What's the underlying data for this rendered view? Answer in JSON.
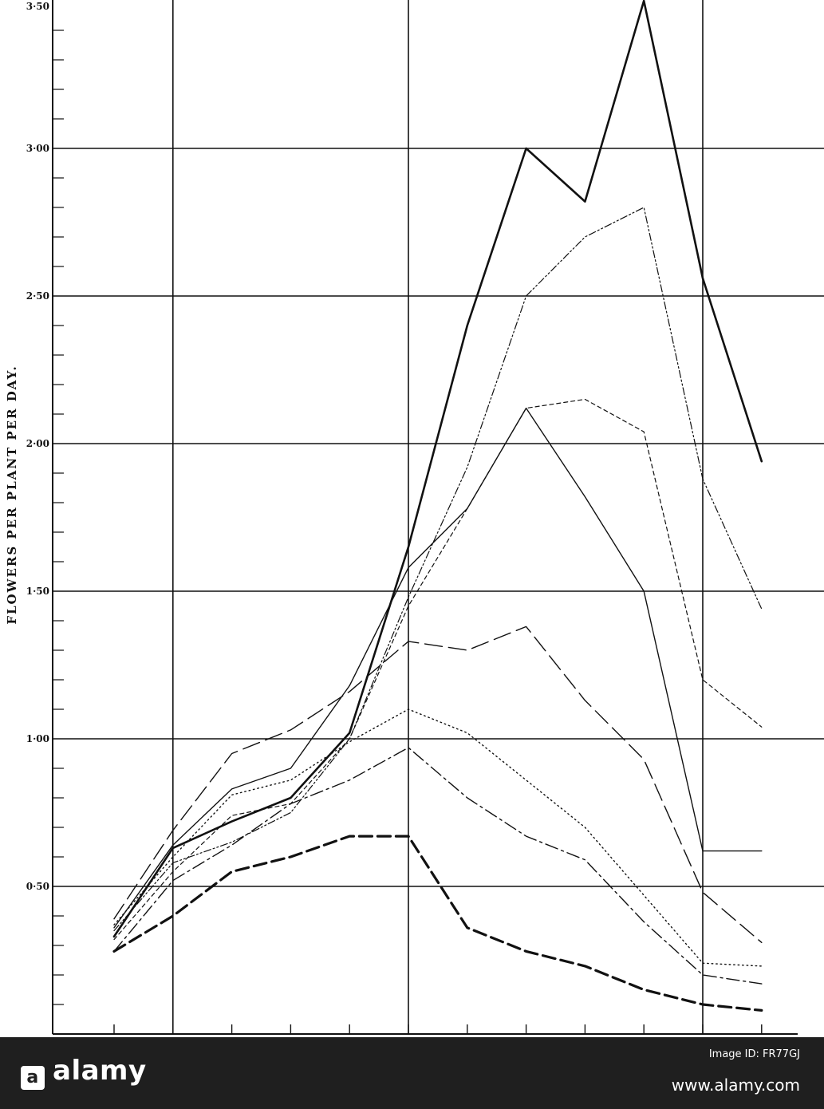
{
  "chart_data": {
    "type": "line",
    "title": "",
    "ylabel": "FLOWERS PER PLANT PER DAY.",
    "xlabel": "",
    "ylim": [
      0.0,
      3.5
    ],
    "y_tick_labels": [
      "0·50",
      "1·00",
      "1·50",
      "2·00",
      "2·50",
      "3·00",
      "3·50"
    ],
    "y_tick_values": [
      0.5,
      1.0,
      1.5,
      2.0,
      2.5,
      3.0,
      3.5
    ],
    "x_count": 12,
    "grid": true,
    "series": [
      {
        "style": "solid-heavy",
        "color": "#111111",
        "values": [
          0.33,
          0.63,
          0.72,
          0.8,
          1.02,
          1.65,
          2.4,
          3.0,
          2.82,
          3.5,
          2.56,
          1.94
        ]
      },
      {
        "style": "dash-dot-dot",
        "color": "#111111",
        "values": [
          0.35,
          0.58,
          0.65,
          0.75,
          1.0,
          1.48,
          1.92,
          2.5,
          2.7,
          2.8,
          1.88,
          1.44
        ]
      },
      {
        "style": "solid-thin",
        "color": "#111111",
        "values": [
          0.36,
          0.64,
          0.83,
          0.9,
          1.18,
          1.58,
          1.78,
          2.12,
          1.82,
          1.5,
          0.62,
          0.62
        ]
      },
      {
        "style": "short-dash",
        "color": "#111111",
        "values": [
          0.32,
          0.55,
          0.74,
          0.78,
          1.0,
          1.45,
          1.78,
          2.12,
          2.15,
          2.04,
          1.2,
          1.04
        ]
      },
      {
        "style": "long-dash",
        "color": "#111111",
        "values": [
          0.39,
          0.69,
          0.95,
          1.03,
          1.16,
          1.33,
          1.3,
          1.38,
          1.13,
          0.93,
          0.48,
          0.31
        ]
      },
      {
        "style": "dotted",
        "color": "#111111",
        "values": [
          0.37,
          0.6,
          0.81,
          0.86,
          0.99,
          1.1,
          1.02,
          0.86,
          0.7,
          0.47,
          0.24,
          0.23
        ]
      },
      {
        "style": "dash-dot",
        "color": "#111111",
        "values": [
          0.28,
          0.52,
          0.64,
          0.78,
          0.86,
          0.97,
          0.8,
          0.67,
          0.59,
          0.38,
          0.2,
          0.17
        ]
      },
      {
        "style": "heavy-dash",
        "color": "#111111",
        "values": [
          0.28,
          0.4,
          0.55,
          0.6,
          0.67,
          0.67,
          0.36,
          0.28,
          0.23,
          0.15,
          0.1,
          0.08
        ]
      }
    ]
  },
  "footer": {
    "brand": "alamy",
    "image_id": "Image ID: FR77GJ",
    "url": "www.alamy.com"
  }
}
